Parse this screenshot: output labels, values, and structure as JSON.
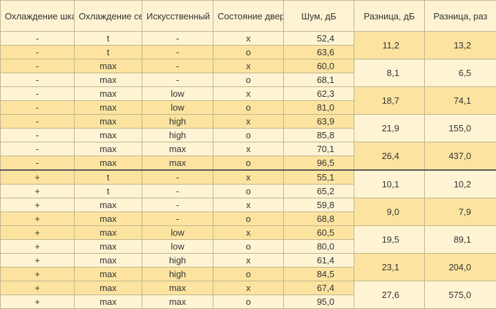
{
  "table": {
    "header": [
      "Охлаждение шкафа",
      "Охлаждение серверов",
      "Искусственный источник",
      "Состояние дверей",
      "Шум, дБ",
      "Разница, дБ",
      "Разница, раз"
    ],
    "rows": [
      [
        "-",
        "t",
        "-",
        "x",
        "52,4"
      ],
      [
        "-",
        "t",
        "-",
        "o",
        "63,6"
      ],
      [
        "-",
        "max",
        "-",
        "x",
        "60,0"
      ],
      [
        "-",
        "max",
        "-",
        "o",
        "68,1"
      ],
      [
        "-",
        "max",
        "low",
        "x",
        "62,3"
      ],
      [
        "-",
        "max",
        "low",
        "o",
        "81,0"
      ],
      [
        "-",
        "max",
        "high",
        "x",
        "63,9"
      ],
      [
        "-",
        "max",
        "high",
        "o",
        "85,8"
      ],
      [
        "-",
        "max",
        "max",
        "x",
        "70,1"
      ],
      [
        "-",
        "max",
        "max",
        "o",
        "96,5"
      ],
      [
        "+",
        "t",
        "-",
        "x",
        "55,1"
      ],
      [
        "+",
        "t",
        "-",
        "o",
        "65,2"
      ],
      [
        "+",
        "max",
        "-",
        "x",
        "59,8"
      ],
      [
        "+",
        "max",
        "-",
        "o",
        "68,8"
      ],
      [
        "+",
        "max",
        "low",
        "x",
        "60,5"
      ],
      [
        "+",
        "max",
        "low",
        "o",
        "80,0"
      ],
      [
        "+",
        "max",
        "high",
        "x",
        "61,4"
      ],
      [
        "+",
        "max",
        "high",
        "o",
        "84,5"
      ],
      [
        "+",
        "max",
        "max",
        "x",
        "67,4"
      ],
      [
        "+",
        "max",
        "max",
        "o",
        "95,0"
      ]
    ],
    "differences": [
      [
        "11,2",
        "13,2"
      ],
      [
        "8,1",
        "6,5"
      ],
      [
        "18,7",
        "74,1"
      ],
      [
        "21,9",
        "155,0"
      ],
      [
        "26,4",
        "437,0"
      ],
      [
        "10,1",
        "10,2"
      ],
      [
        "9,0",
        "7,9"
      ],
      [
        "19,5",
        "89,1"
      ],
      [
        "23,1",
        "204,0"
      ],
      [
        "27,6",
        "575,0"
      ]
    ]
  }
}
